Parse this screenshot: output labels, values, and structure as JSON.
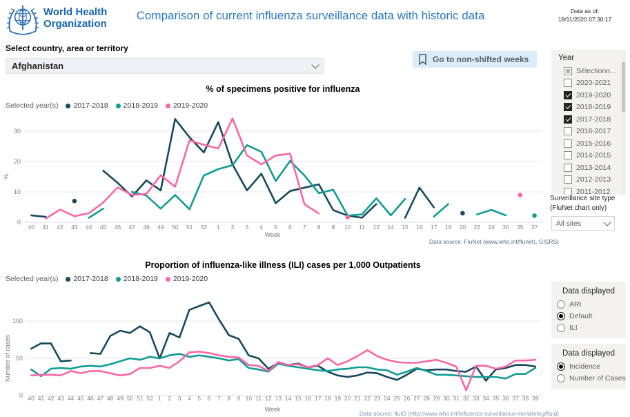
{
  "header": {
    "logo_line1": "World Health",
    "logo_line2": "Organization",
    "title": "Comparison of current influenza surveillance data with historic data",
    "data_as_of_label": "Data as of:",
    "data_as_of_value": "18/11/2020 07:30:17"
  },
  "country_selector": {
    "label": "Select country, area or territory",
    "value": "Afghanistan"
  },
  "bookmark_button": {
    "label": "Go to non-shifted weeks",
    "icon": "bookmark"
  },
  "year_filter": {
    "title": "Year",
    "options": [
      {
        "label": "Sélectionn...",
        "state": "partial"
      },
      {
        "label": "2020-2021",
        "state": "unchecked"
      },
      {
        "label": "2019-2020",
        "state": "checked"
      },
      {
        "label": "2018-2019",
        "state": "checked"
      },
      {
        "label": "2017-2018",
        "state": "checked"
      },
      {
        "label": "2016-2017",
        "state": "unchecked"
      },
      {
        "label": "2015-2016",
        "state": "unchecked"
      },
      {
        "label": "2014-2015",
        "state": "unchecked"
      },
      {
        "label": "2013-2014",
        "state": "unchecked"
      },
      {
        "label": "2012-2013",
        "state": "unchecked"
      },
      {
        "label": "2011-2012",
        "state": "unchecked"
      }
    ]
  },
  "site_type_filter": {
    "label_line1": "Surveillance site type",
    "label_line2": "(FluNet chart only)",
    "value": "All sites"
  },
  "data_displayed_top": {
    "title": "Data displayed",
    "options": [
      {
        "label": "ARI",
        "selected": false
      },
      {
        "label": "Default",
        "selected": true
      },
      {
        "label": "ILI",
        "selected": false
      }
    ]
  },
  "data_displayed_bottom": {
    "title": "Data displayed",
    "options": [
      {
        "label": "Incidence",
        "selected": true
      },
      {
        "label": "Number of Cases",
        "selected": false
      }
    ]
  },
  "legend_label": "Selected year(s)",
  "colors": {
    "accent_blue": "#2b7ac0",
    "series_2017_2018": "#16495C",
    "series_2018_2019": "#0E9C94",
    "series_2019_2020": "#FA66A6",
    "gridline": "#e6e6e6"
  },
  "chart_data": [
    {
      "type": "line",
      "title": "% of specimens positive for influenza",
      "xlabel": "Week",
      "ylabel": "%",
      "ylim": [
        0,
        35
      ],
      "yticks": [
        0,
        10,
        20,
        30
      ],
      "legend_position": "top-left",
      "grid": true,
      "source": "Data source: FluNet (www.who.int/flunet), GISRS)",
      "categories": [
        "40",
        "41",
        "42",
        "43",
        "44",
        "45",
        "46",
        "47",
        "48",
        "49",
        "50",
        "51",
        "52",
        "1",
        "2",
        "3",
        "4",
        "5",
        "6",
        "7",
        "8",
        "9",
        "10",
        "11",
        "12",
        "14",
        "15",
        "16",
        "17",
        "18",
        "20",
        "22",
        "24",
        "30",
        "35",
        "37"
      ],
      "series": [
        {
          "name": "2017-2018",
          "color": "#16495C",
          "values": [
            2.3,
            1.8,
            null,
            7,
            null,
            17,
            13,
            8.5,
            13.8,
            10.5,
            34,
            28,
            23,
            33,
            19,
            10.5,
            16,
            6.3,
            10.3,
            11.4,
            12.5,
            4,
            2.2,
            1.5,
            6,
            null,
            1.5,
            11.4,
            4.9,
            null,
            3,
            null,
            null,
            null,
            null,
            null
          ]
        },
        {
          "name": "2018-2019",
          "color": "#0E9C94",
          "values": [
            null,
            null,
            null,
            null,
            1.5,
            4.5,
            null,
            10,
            8.8,
            4.5,
            9,
            4.3,
            15.4,
            17.5,
            18.8,
            25.4,
            23.2,
            13.6,
            20.2,
            15.4,
            9.6,
            10.7,
            2.2,
            2.6,
            7.9,
            2.3,
            7.7,
            null,
            1.9,
            6,
            null,
            2.6,
            4.1,
            2.3,
            null,
            2.2
          ]
        },
        {
          "name": "2019-2020",
          "color": "#FA66A6",
          "values": [
            null,
            1.2,
            4.2,
            2,
            3,
            6.5,
            11.5,
            9,
            9.3,
            15.5,
            11.7,
            27,
            25.5,
            24.3,
            34.2,
            22,
            19.1,
            22,
            22.6,
            5.9,
            2.9,
            null,
            1.7,
            null,
            null,
            null,
            null,
            null,
            null,
            null,
            null,
            null,
            null,
            null,
            9,
            null
          ]
        }
      ]
    },
    {
      "type": "line",
      "title": "Proportion of influenza-like illness (ILI) cases per 1,000 Outpatients",
      "xlabel": "Week",
      "ylabel": "Number of cases",
      "ylim": [
        0,
        130
      ],
      "yticks": [
        0,
        50,
        100
      ],
      "legend_position": "top-left",
      "grid": true,
      "source": "Data source: fluID (http://www.who.int/influenza-surveillance-monitoring/fluid)",
      "categories": [
        "40",
        "41",
        "42",
        "43",
        "44",
        "45",
        "46",
        "47",
        "48",
        "49",
        "50",
        "51",
        "52",
        "1",
        "2",
        "3",
        "4",
        "5",
        "6",
        "7",
        "8",
        "9",
        "10",
        "11",
        "12",
        "13",
        "14",
        "15",
        "16",
        "17",
        "18",
        "19",
        "20",
        "21",
        "22",
        "23",
        "24",
        "25",
        "26",
        "27",
        "28",
        "29",
        "30",
        "31",
        "32",
        "33",
        "34",
        "35",
        "36",
        "37",
        "38",
        "39"
      ],
      "series": [
        {
          "name": "2017-2018",
          "color": "#16495C",
          "values": [
            63,
            70,
            70,
            46,
            47,
            null,
            57,
            56,
            80,
            87,
            84,
            93,
            85,
            50,
            84,
            78,
            115,
            120,
            125,
            102,
            81,
            76,
            54,
            50,
            36,
            44,
            41,
            43,
            38,
            40,
            32,
            27,
            25,
            27,
            31,
            30,
            25,
            21,
            28,
            36,
            34,
            35,
            35,
            33,
            32,
            39,
            20,
            35,
            37,
            41,
            41,
            39
          ]
        },
        {
          "name": "2018-2019",
          "color": "#0E9C94",
          "values": [
            35,
            26,
            36,
            37,
            36,
            39,
            40,
            39,
            42,
            46,
            50,
            48,
            52,
            50,
            54,
            56,
            52,
            54,
            52,
            50,
            47,
            49,
            37,
            35,
            32,
            43,
            40,
            38,
            36,
            34,
            33,
            35,
            36,
            38,
            38,
            35,
            34,
            28,
            32,
            37,
            33,
            28,
            28,
            27,
            26,
            25,
            25,
            25,
            23,
            29,
            29,
            37
          ]
        },
        {
          "name": "2019-2020",
          "color": "#FA66A6",
          "values": [
            27,
            28,
            28,
            27,
            33,
            30,
            33,
            33,
            30,
            27,
            29,
            37,
            37,
            40,
            37,
            46,
            58,
            59,
            57,
            54,
            52,
            51,
            41,
            40,
            33,
            45,
            41,
            42,
            38,
            41,
            50,
            41,
            46,
            53,
            61,
            53,
            48,
            45,
            44,
            44,
            46,
            48,
            44,
            39,
            7,
            40,
            40,
            36,
            39,
            47,
            47,
            48
          ]
        }
      ]
    }
  ]
}
